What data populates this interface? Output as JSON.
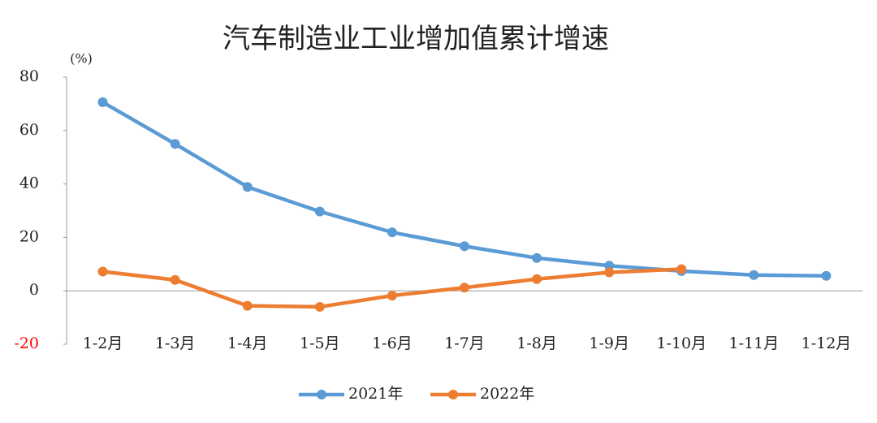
{
  "chart_data": {
    "type": "line",
    "title": "汽车制造业工业增加值累计增速",
    "y_label": "(%)",
    "categories": [
      "1-2月",
      "1-3月",
      "1-4月",
      "1-5月",
      "1-6月",
      "1-7月",
      "1-8月",
      "1-9月",
      "1-10月",
      "1-11月",
      "1-12月"
    ],
    "series": [
      {
        "name": "2021年",
        "color": "#5b9bd5",
        "values": [
          70.6,
          55.0,
          38.9,
          29.7,
          21.9,
          16.7,
          12.3,
          9.4,
          7.4,
          5.9,
          5.6
        ]
      },
      {
        "name": "2022年",
        "color": "#ed7d31",
        "values": [
          7.2,
          4.1,
          -5.6,
          -6.0,
          -1.8,
          1.2,
          4.4,
          6.9,
          8.1,
          null,
          null
        ]
      }
    ],
    "ylim": [
      -20,
      80
    ],
    "yticks": [
      -20,
      0,
      20,
      40,
      60,
      80
    ],
    "negative_tick_color": "#ff0000",
    "legend": "bottom"
  }
}
